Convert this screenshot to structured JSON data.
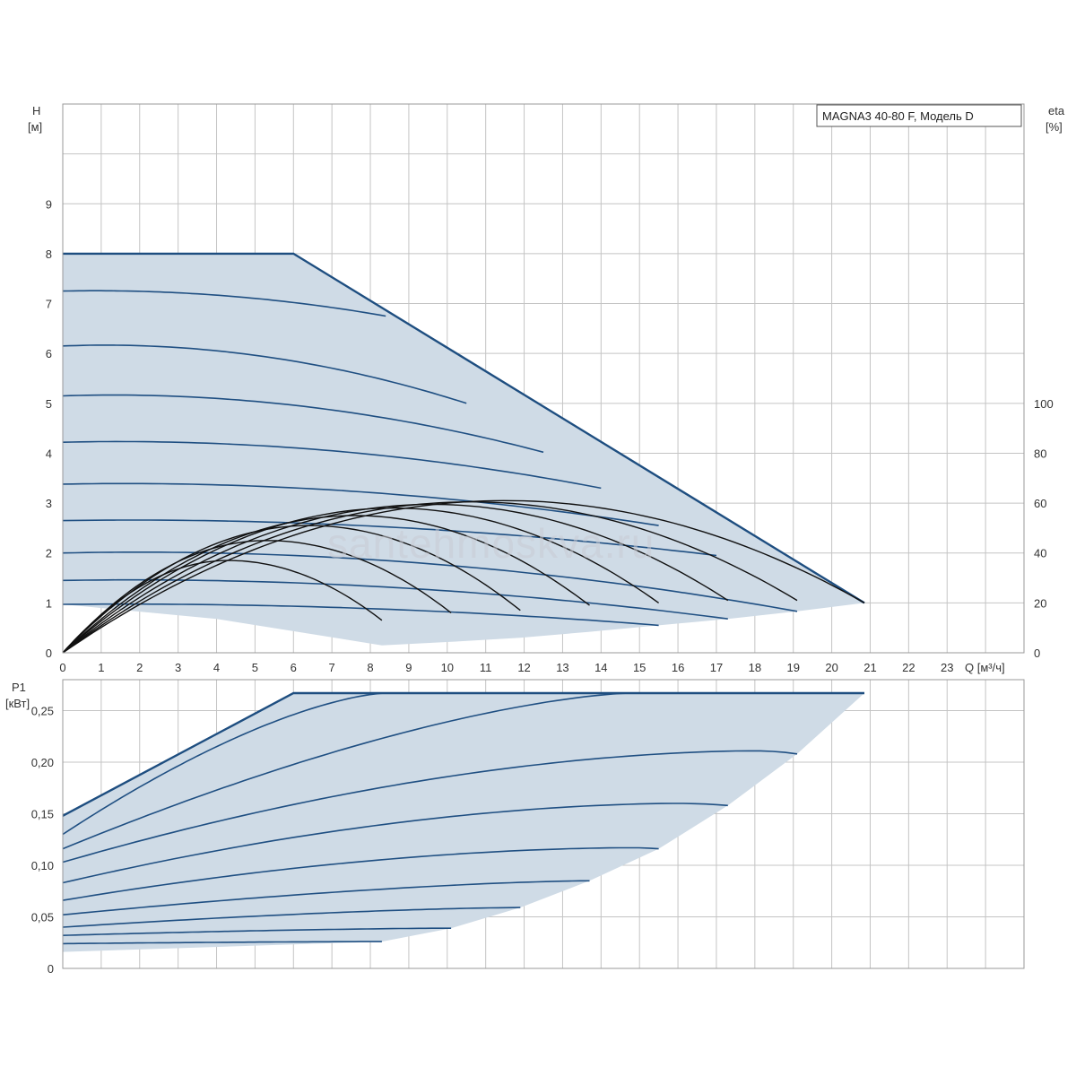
{
  "chart_data": [
    {
      "type": "line",
      "legend_text": "MAGNA3 40-80 F, Модель D",
      "legend_position": "top-right",
      "watermark": "santehmoskva.ru",
      "y_axis": {
        "label": "H",
        "unit": "[м]",
        "ticks": [
          "0",
          "1",
          "2",
          "3",
          "4",
          "5",
          "6",
          "7",
          "8",
          "9"
        ],
        "ylim": [
          0,
          11
        ]
      },
      "y2_axis": {
        "label": "eta",
        "unit": "[%]",
        "ticks": [
          "0",
          "20",
          "40",
          "60",
          "80",
          "100"
        ],
        "ylim": [
          0,
          220
        ]
      },
      "x_axis": {
        "unit_label": "Q [м³/ч]",
        "ticks": [
          "0",
          "1",
          "2",
          "3",
          "4",
          "5",
          "6",
          "7",
          "8",
          "9",
          "10",
          "11",
          "12",
          "13",
          "14",
          "15",
          "16",
          "17",
          "18",
          "19",
          "20",
          "21",
          "22",
          "23"
        ],
        "xlim": [
          0,
          25
        ]
      },
      "grid": true,
      "envelope": {
        "top": [
          [
            0,
            8.0
          ],
          [
            6.0,
            8.0
          ],
          [
            20.85,
            1.0
          ]
        ],
        "bottom": [
          [
            0,
            0.97
          ],
          [
            4.0,
            0.68
          ],
          [
            8.3,
            0.15
          ],
          [
            10.1,
            0.22
          ],
          [
            11.9,
            0.3
          ],
          [
            13.7,
            0.42
          ],
          [
            15.5,
            0.55
          ],
          [
            17.3,
            0.68
          ],
          [
            19.1,
            0.83
          ],
          [
            20.85,
            1.0
          ]
        ]
      },
      "head_curves": [
        {
          "h0": 7.25,
          "q_end": 8.4,
          "h_end": 6.75
        },
        {
          "h0": 6.15,
          "q_end": 10.5,
          "h_end": 5.0
        },
        {
          "h0": 5.15,
          "q_end": 12.5,
          "h_end": 4.02
        },
        {
          "h0": 4.22,
          "q_end": 14.0,
          "h_end": 3.3
        },
        {
          "h0": 3.38,
          "q_end": 15.5,
          "h_end": 2.55
        },
        {
          "h0": 2.65,
          "q_end": 17.0,
          "h_end": 1.95
        },
        {
          "h0": 2.0,
          "q_end": 19.1,
          "h_end": 0.83
        },
        {
          "h0": 1.45,
          "q_end": 17.3,
          "h_end": 0.68
        },
        {
          "h0": 0.97,
          "q_end": 15.5,
          "h_end": 0.55
        }
      ],
      "eff_curves": [
        {
          "peak_q": 4.3,
          "peak": 37,
          "end_q": 8.3,
          "end": 13
        },
        {
          "peak_q": 5.3,
          "peak": 45,
          "end_q": 10.1,
          "end": 16
        },
        {
          "peak_q": 6.4,
          "peak": 51,
          "end_q": 11.9,
          "end": 17
        },
        {
          "peak_q": 7.6,
          "peak": 55,
          "end_q": 13.7,
          "end": 19
        },
        {
          "peak_q": 8.6,
          "peak": 58,
          "end_q": 15.5,
          "end": 20
        },
        {
          "peak_q": 9.6,
          "peak": 59.5,
          "end_q": 17.3,
          "end": 21
        },
        {
          "peak_q": 10.6,
          "peak": 60.5,
          "end_q": 19.1,
          "end": 21
        },
        {
          "peak_q": 11.5,
          "peak": 61,
          "end_q": 20.85,
          "end": 20
        }
      ]
    },
    {
      "type": "line",
      "y_axis": {
        "label": "P1",
        "unit": "[кВт]",
        "ticks": [
          "0",
          "0,05",
          "0,10",
          "0,15",
          "0,20",
          "0,25"
        ],
        "ylim": [
          0,
          0.28
        ]
      },
      "x_axis": {
        "xlim": [
          0,
          25
        ]
      },
      "grid": true,
      "envelope": {
        "top": [
          [
            0,
            0.148
          ],
          [
            6.0,
            0.267
          ],
          [
            20.85,
            0.267
          ]
        ],
        "bottom": [
          [
            0,
            0.016
          ],
          [
            8.3,
            0.026
          ],
          [
            10.1,
            0.039
          ],
          [
            11.9,
            0.059
          ],
          [
            13.7,
            0.085
          ],
          [
            15.5,
            0.116
          ],
          [
            17.3,
            0.158
          ],
          [
            19.1,
            0.208
          ],
          [
            20.85,
            0.267
          ]
        ]
      },
      "power_curves": [
        {
          "p0": 0.13,
          "q_end": 8.4,
          "p_end": 0.267
        },
        {
          "p0": 0.116,
          "q_end": 14.8,
          "p_end": 0.267
        },
        {
          "p0": 0.103,
          "q_end": 19.1,
          "p_end": 0.208,
          "q_peak": 18.0,
          "p_peak": 0.211
        },
        {
          "p0": 0.083,
          "q_end": 17.3,
          "p_end": 0.158,
          "q_peak": 16.0,
          "p_peak": 0.16
        },
        {
          "p0": 0.066,
          "q_end": 15.5,
          "p_end": 0.116,
          "q_peak": 14.8,
          "p_peak": 0.117
        },
        {
          "p0": 0.052,
          "q_end": 13.7,
          "p_end": 0.085
        },
        {
          "p0": 0.04,
          "q_end": 11.9,
          "p_end": 0.059
        },
        {
          "p0": 0.032,
          "q_end": 10.1,
          "p_end": 0.039
        },
        {
          "p0": 0.024,
          "q_end": 8.3,
          "p_end": 0.026
        }
      ]
    }
  ],
  "colors": {
    "fill": "#cfdbe6",
    "curve": "#1f4f82",
    "envelope": "#1e4e80",
    "efficiency": "#111111",
    "grid": "#c4c4c4",
    "frame": "#9a9a9a"
  }
}
